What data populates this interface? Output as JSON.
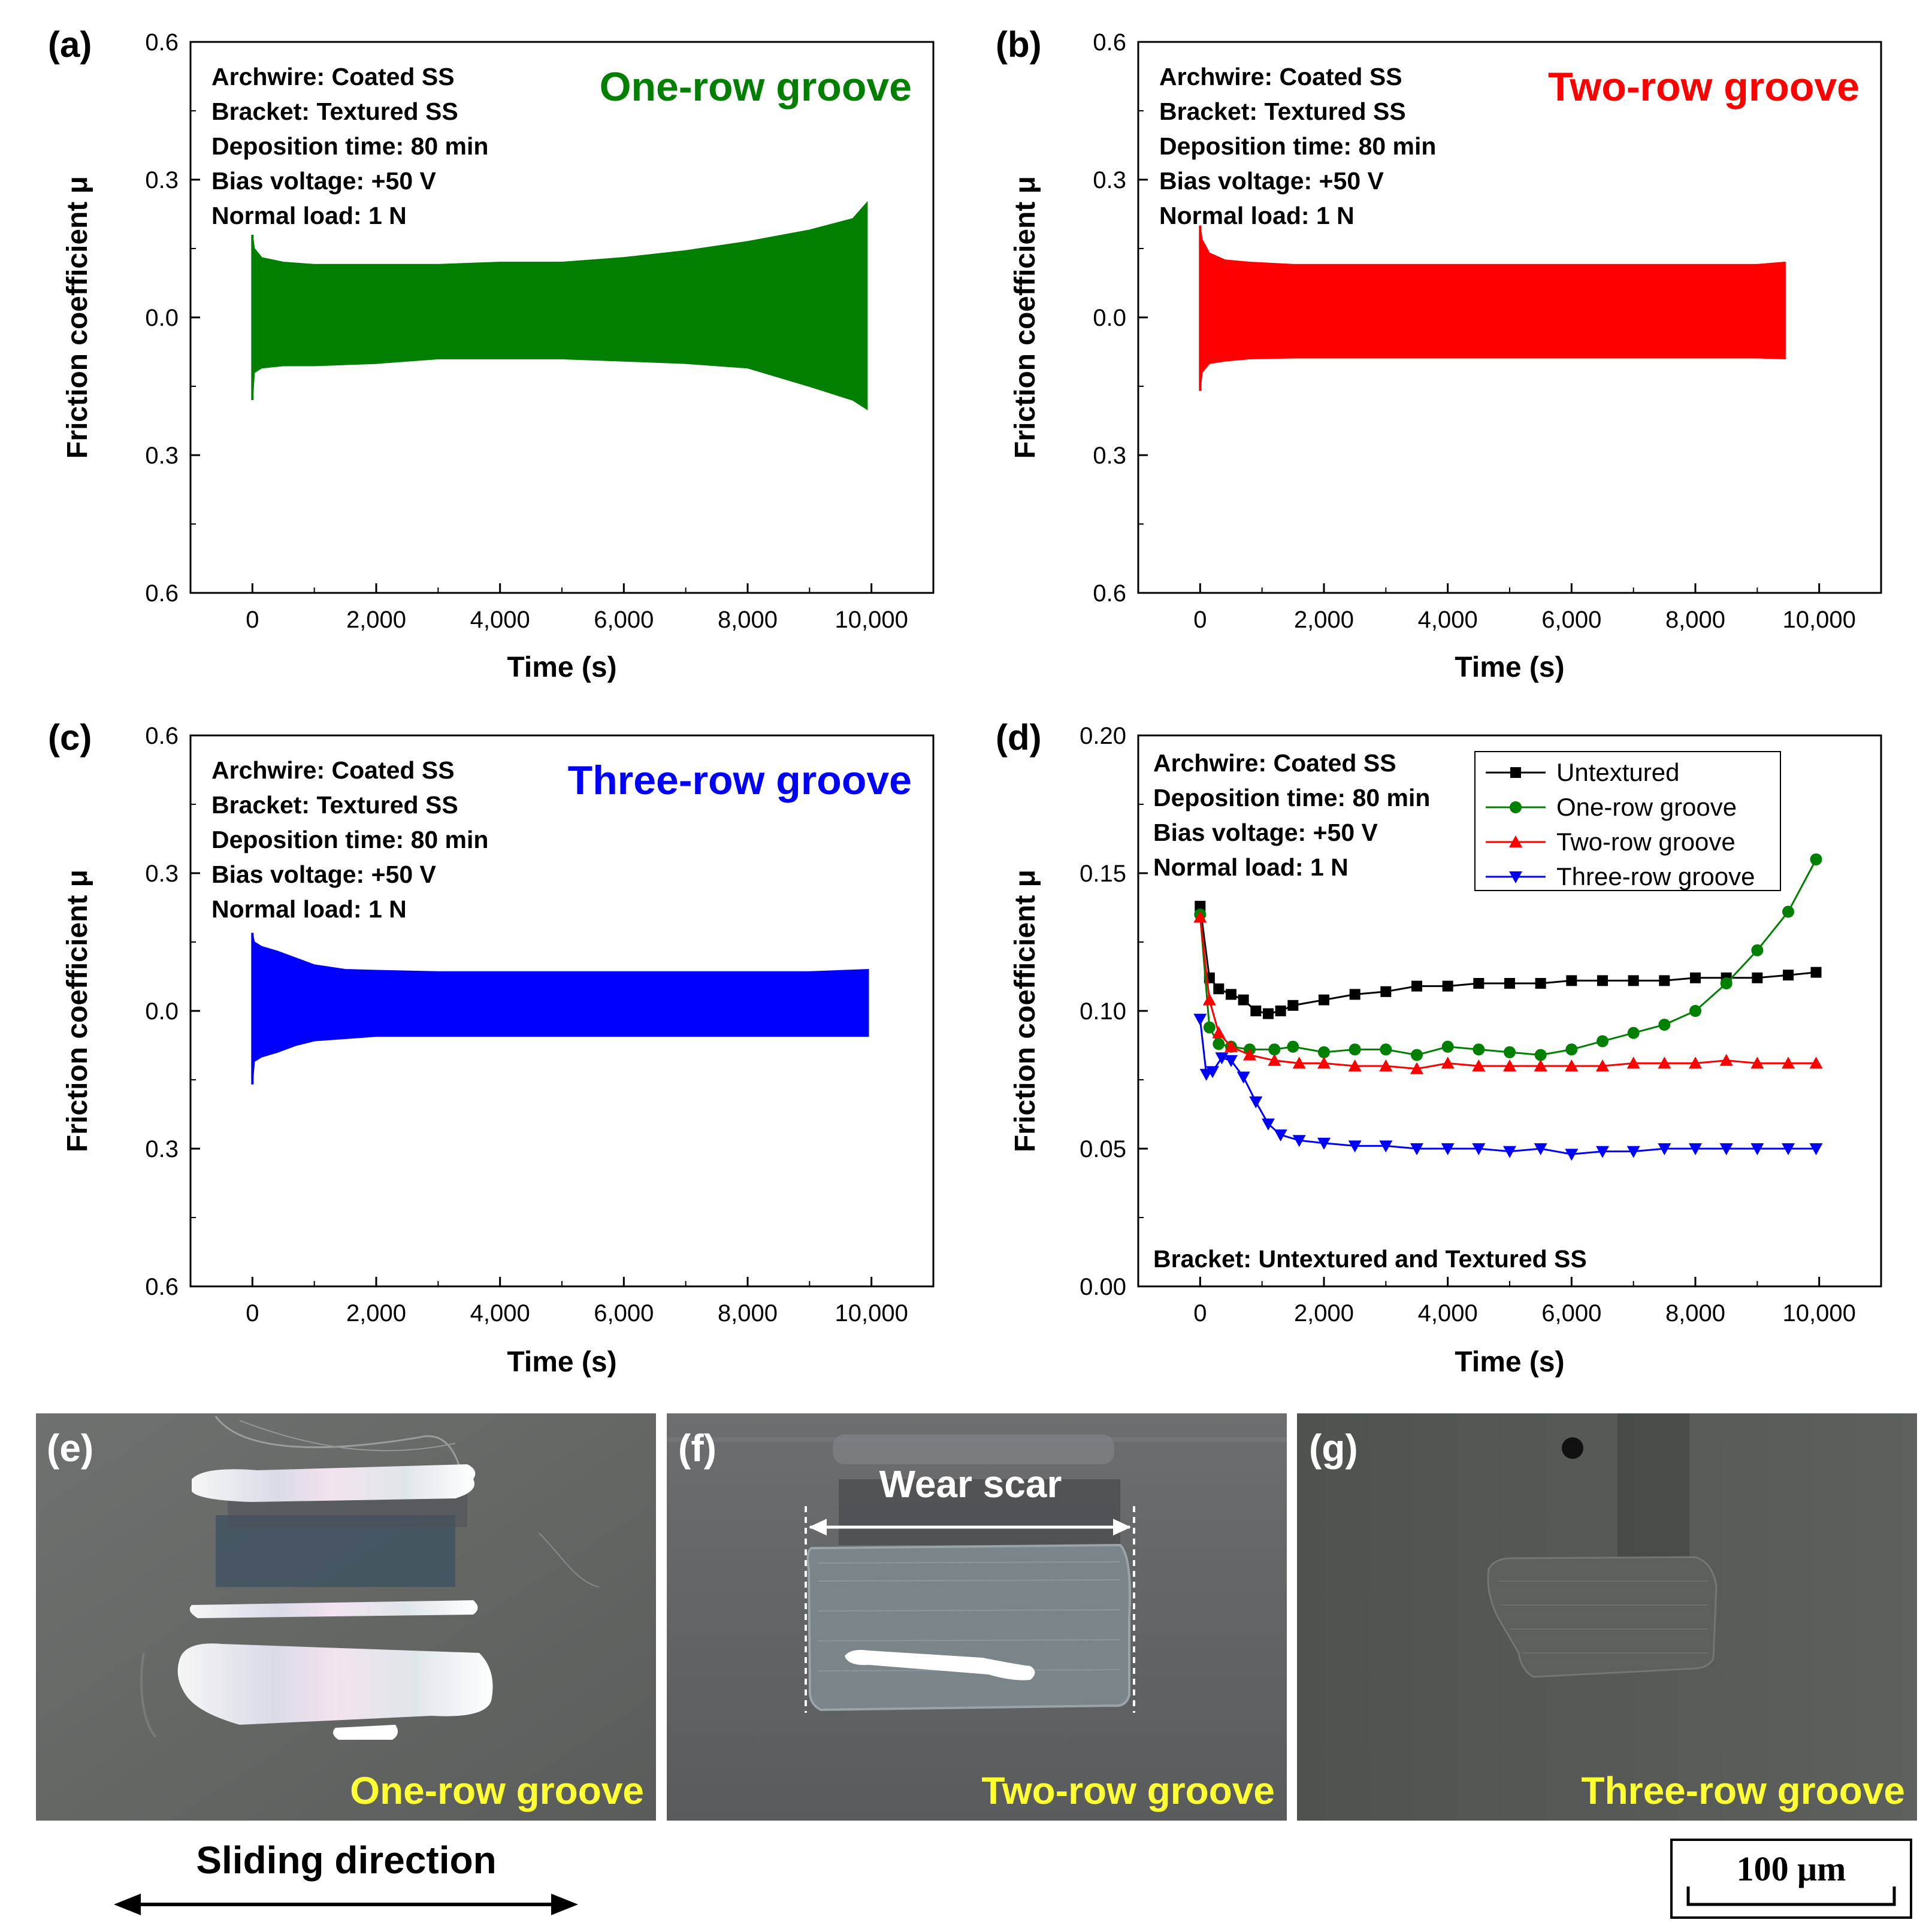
{
  "chart_data": [
    {
      "panel": "(a)",
      "type": "area",
      "title": "One-row groove",
      "info": [
        "Archwire: Coated SS",
        "Bracket: Textured SS",
        "Deposition time: 80 min",
        "Bias voltage: +50 V",
        "Normal load: 1 N"
      ],
      "xlabel": "Time (s)",
      "ylabel": "Friction coefficient μ",
      "xlim": [
        -1000,
        11000
      ],
      "ylim": [
        -0.6,
        0.6
      ],
      "x_ticks": [
        0,
        2000,
        4000,
        6000,
        8000,
        10000
      ],
      "x_tick_labels": [
        "0",
        "2,000",
        "4,000",
        "6,000",
        "8,000",
        "10,000"
      ],
      "y_ticks": [
        -0.6,
        -0.3,
        0.0,
        0.3,
        0.6
      ],
      "y_tick_labels": [
        "0.6",
        "0.3",
        "0.0",
        "0.3",
        "0.6"
      ],
      "color": "#007F00",
      "envelope": {
        "t": [
          0,
          30,
          150,
          500,
          1000,
          2000,
          3000,
          4000,
          5000,
          6000,
          7000,
          8000,
          9000,
          9700,
          9930
        ],
        "upper": [
          0.18,
          0.15,
          0.13,
          0.12,
          0.115,
          0.115,
          0.115,
          0.12,
          0.12,
          0.13,
          0.145,
          0.165,
          0.19,
          0.215,
          0.25
        ],
        "lower": [
          -0.18,
          -0.12,
          -0.11,
          -0.105,
          -0.105,
          -0.1,
          -0.09,
          -0.09,
          -0.09,
          -0.095,
          -0.1,
          -0.11,
          -0.15,
          -0.18,
          -0.2
        ]
      }
    },
    {
      "panel": "(b)",
      "type": "area",
      "title": "Two-row groove",
      "info": [
        "Archwire: Coated SS",
        "Bracket: Textured SS",
        "Deposition time: 80 min",
        "Bias voltage: +50 V",
        "Normal load: 1 N"
      ],
      "xlabel": "Time (s)",
      "ylabel": "Friction coefficient μ",
      "xlim": [
        -1000,
        11000
      ],
      "ylim": [
        -0.6,
        0.6
      ],
      "x_ticks": [
        0,
        2000,
        4000,
        6000,
        8000,
        10000
      ],
      "x_tick_labels": [
        "0",
        "2,000",
        "4,000",
        "6,000",
        "8,000",
        "10,000"
      ],
      "y_ticks": [
        -0.6,
        -0.3,
        0.0,
        0.3,
        0.6
      ],
      "y_tick_labels": [
        "0.6",
        "0.3",
        "0.0",
        "0.3",
        "0.6"
      ],
      "color": "#FF0000",
      "envelope": {
        "t": [
          0,
          30,
          150,
          400,
          800,
          1500,
          3000,
          5000,
          7000,
          9000,
          9450
        ],
        "upper": [
          0.2,
          0.17,
          0.14,
          0.125,
          0.12,
          0.115,
          0.115,
          0.115,
          0.115,
          0.115,
          0.12
        ],
        "lower": [
          -0.16,
          -0.12,
          -0.1,
          -0.095,
          -0.09,
          -0.088,
          -0.088,
          -0.088,
          -0.088,
          -0.088,
          -0.09
        ]
      }
    },
    {
      "panel": "(c)",
      "type": "area",
      "title": "Three-row groove",
      "info": [
        "Archwire: Coated SS",
        "Bracket: Textured SS",
        "Deposition time: 80 min",
        "Bias voltage: +50 V",
        "Normal load: 1 N"
      ],
      "xlabel": "Time (s)",
      "ylabel": "Friction coefficient μ",
      "xlim": [
        -1000,
        11000
      ],
      "ylim": [
        -0.6,
        0.6
      ],
      "x_ticks": [
        0,
        2000,
        4000,
        6000,
        8000,
        10000
      ],
      "x_tick_labels": [
        "0",
        "2,000",
        "4,000",
        "6,000",
        "8,000",
        "10,000"
      ],
      "y_ticks": [
        -0.6,
        -0.3,
        0.0,
        0.3,
        0.6
      ],
      "y_tick_labels": [
        "0.6",
        "0.3",
        "0.0",
        "0.3",
        "0.6"
      ],
      "color": "#0000FF",
      "envelope": {
        "t": [
          0,
          30,
          150,
          400,
          700,
          1000,
          1500,
          2000,
          3000,
          5000,
          7000,
          9000,
          9950
        ],
        "upper": [
          0.17,
          0.15,
          0.14,
          0.13,
          0.115,
          0.1,
          0.09,
          0.088,
          0.085,
          0.085,
          0.085,
          0.085,
          0.09
        ],
        "lower": [
          -0.16,
          -0.11,
          -0.1,
          -0.09,
          -0.075,
          -0.065,
          -0.06,
          -0.055,
          -0.055,
          -0.055,
          -0.055,
          -0.055,
          -0.055
        ]
      }
    },
    {
      "panel": "(d)",
      "type": "line",
      "info": [
        "Archwire: Coated SS",
        "Deposition time: 80 min",
        "Bias voltage: +50 V",
        "Normal load: 1 N"
      ],
      "bottom_note": "Bracket: Untextured and Textured SS",
      "xlabel": "Time (s)",
      "ylabel": "Friction coefficient μ",
      "xlim": [
        -1000,
        11000
      ],
      "ylim": [
        0.0,
        0.2
      ],
      "x_ticks": [
        0,
        2000,
        4000,
        6000,
        8000,
        10000
      ],
      "x_tick_labels": [
        "0",
        "2,000",
        "4,000",
        "6,000",
        "8,000",
        "10,000"
      ],
      "y_ticks": [
        0.0,
        0.05,
        0.1,
        0.15,
        0.2
      ],
      "y_tick_labels": [
        "0.00",
        "0.05",
        "0.10",
        "0.15",
        "0.20"
      ],
      "legend_position": "top-right",
      "series": [
        {
          "name": "Untextured",
          "color": "#000000",
          "marker": "square",
          "x": [
            0,
            150,
            300,
            500,
            700,
            900,
            1100,
            1300,
            1500,
            2000,
            2500,
            3000,
            3500,
            4000,
            4500,
            5000,
            5500,
            6000,
            6500,
            7000,
            7500,
            8000,
            8500,
            9000,
            9500,
            9950
          ],
          "y": [
            0.138,
            0.112,
            0.108,
            0.106,
            0.104,
            0.1,
            0.099,
            0.1,
            0.102,
            0.104,
            0.106,
            0.107,
            0.109,
            0.109,
            0.11,
            0.11,
            0.11,
            0.111,
            0.111,
            0.111,
            0.111,
            0.112,
            0.112,
            0.112,
            0.113,
            0.114
          ]
        },
        {
          "name": "One-row groove",
          "color": "#008000",
          "marker": "circle",
          "x": [
            0,
            150,
            300,
            500,
            800,
            1200,
            1500,
            2000,
            2500,
            3000,
            3500,
            4000,
            4500,
            5000,
            5500,
            6000,
            6500,
            7000,
            7500,
            8000,
            8500,
            9000,
            9500,
            9950
          ],
          "y": [
            0.135,
            0.094,
            0.088,
            0.087,
            0.086,
            0.086,
            0.087,
            0.085,
            0.086,
            0.086,
            0.084,
            0.087,
            0.086,
            0.085,
            0.084,
            0.086,
            0.089,
            0.092,
            0.095,
            0.1,
            0.11,
            0.122,
            0.136,
            0.155
          ]
        },
        {
          "name": "Two-row groove",
          "color": "#FF0000",
          "marker": "triangle-up",
          "x": [
            0,
            150,
            300,
            500,
            800,
            1200,
            1600,
            2000,
            2500,
            3000,
            3500,
            4000,
            4500,
            5000,
            5500,
            6000,
            6500,
            7000,
            7500,
            8000,
            8500,
            9000,
            9500,
            9950
          ],
          "y": [
            0.134,
            0.104,
            0.092,
            0.087,
            0.084,
            0.082,
            0.081,
            0.081,
            0.08,
            0.08,
            0.079,
            0.081,
            0.08,
            0.08,
            0.08,
            0.08,
            0.08,
            0.081,
            0.081,
            0.081,
            0.082,
            0.081,
            0.081,
            0.081
          ]
        },
        {
          "name": "Three-row groove",
          "color": "#0000FF",
          "marker": "triangle-down",
          "x": [
            0,
            100,
            200,
            350,
            500,
            700,
            900,
            1100,
            1300,
            1600,
            2000,
            2500,
            3000,
            3500,
            4000,
            4500,
            5000,
            5500,
            6000,
            6500,
            7000,
            7500,
            8000,
            8500,
            9000,
            9500,
            9950
          ],
          "y": [
            0.097,
            0.077,
            0.078,
            0.083,
            0.082,
            0.076,
            0.067,
            0.059,
            0.055,
            0.053,
            0.052,
            0.051,
            0.051,
            0.05,
            0.05,
            0.05,
            0.049,
            0.05,
            0.048,
            0.049,
            0.049,
            0.05,
            0.05,
            0.05,
            0.05,
            0.05,
            0.05
          ]
        }
      ]
    }
  ],
  "micrographs": [
    {
      "panel": "(e)",
      "caption": "One-row groove"
    },
    {
      "panel": "(f)",
      "caption": "Two-row groove",
      "annotation": "Wear scar"
    },
    {
      "panel": "(g)",
      "caption": "Three-row groove"
    }
  ],
  "sliding_direction": "Sliding direction",
  "scale_bar": "100 μm",
  "colors": {
    "caption": "#FFFF33",
    "green": "#007F00",
    "red": "#FF0000",
    "blue": "#0000FF"
  }
}
